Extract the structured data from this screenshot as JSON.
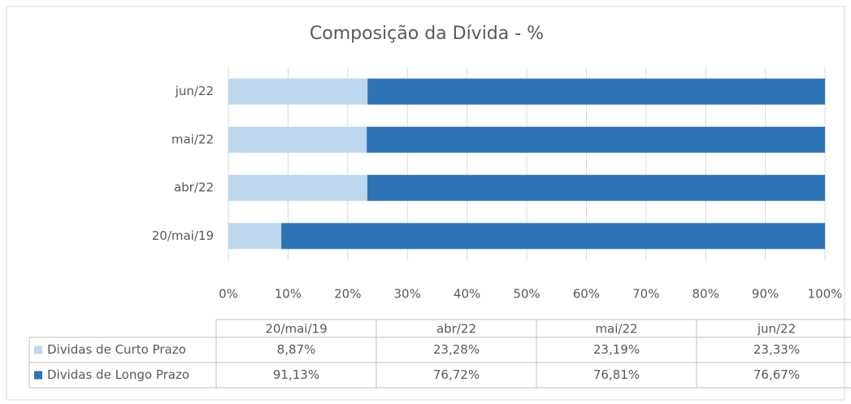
{
  "chart_data": {
    "type": "stacked_barh",
    "title": "Composição da Dívida - %",
    "categories": [
      "20/mai/19",
      "abr/22",
      "mai/22",
      "jun/22"
    ],
    "series": [
      {
        "name": "Dividas de Curto Prazo",
        "color": "#bdd7ee",
        "values": [
          8.87,
          23.28,
          23.19,
          23.33
        ],
        "value_labels": [
          "8,87%",
          "23,28%",
          "23,19%",
          "23,33%"
        ]
      },
      {
        "name": "Dividas de Longo Prazo",
        "color": "#2e75b6",
        "values": [
          91.13,
          76.72,
          76.81,
          76.67
        ],
        "value_labels": [
          "91,13%",
          "76,72%",
          "76,81%",
          "76,67%"
        ]
      }
    ],
    "xlim": [
      0,
      100
    ],
    "xticks": [
      {
        "value": 0,
        "label": "0%"
      },
      {
        "value": 10,
        "label": "10%"
      },
      {
        "value": 20,
        "label": "20%"
      },
      {
        "value": 30,
        "label": "30%"
      },
      {
        "value": 40,
        "label": "40%"
      },
      {
        "value": 50,
        "label": "50%"
      },
      {
        "value": 60,
        "label": "60%"
      },
      {
        "value": 70,
        "label": "70%"
      },
      {
        "value": 80,
        "label": "80%"
      },
      {
        "value": 90,
        "label": "90%"
      },
      {
        "value": 100,
        "label": "100%"
      }
    ],
    "grid": true
  }
}
